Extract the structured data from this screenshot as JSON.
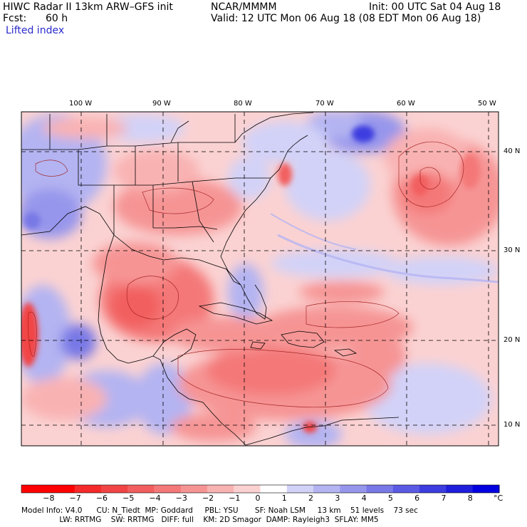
{
  "header": {
    "title": "HIWC Radar II 13km ARW–GFS init",
    "source": "NCAR/MMMM",
    "init": "Init: 00 UTC Sat 04 Aug 18",
    "fcst_label": "Fcst:",
    "fcst_value": "60 h",
    "valid": "Valid: 12 UTC Mon 06 Aug 18 (08 EDT Mon 06 Aug 18)",
    "field": "Lifted index"
  },
  "map": {
    "lon_labels": [
      "100 W",
      "90 W",
      "80 W",
      "70 W",
      "60 W",
      "50 W"
    ],
    "lat_labels": [
      "40 N",
      "30 N",
      "20 N",
      "10 N"
    ],
    "colors": {
      "neg_8": "#ff0000",
      "neg_7": "#f52a2a",
      "neg_6": "#f24444",
      "neg_5": "#f25e5e",
      "neg_4": "#f47878",
      "neg_3": "#f69494",
      "neg_2": "#f9b2b2",
      "neg_1": "#fbd0d0",
      "zero": "#ffffff",
      "pos_1": "#d2d2f8",
      "pos_2": "#b4b4f2",
      "pos_3": "#9696ec",
      "pos_4": "#7878e6",
      "pos_5": "#5a5ae4",
      "pos_6": "#3c3ce0",
      "pos_7": "#1e1edc",
      "pos_8": "#0000e0"
    }
  },
  "colorbar": {
    "labels": [
      "−8",
      "−7",
      "−6",
      "−5",
      "−4",
      "−3",
      "−2",
      "−1",
      "0",
      "1",
      "2",
      "3",
      "4",
      "5",
      "6",
      "7",
      "8"
    ],
    "unit": "°C"
  },
  "footer": {
    "line1": "Model Info: V4.0      CU: N_Tiedt  MP: Goddard     PBL: YSU       SF: Noah LSM     13 km    51 levels    73 sec",
    "line2": "                LW: RRTMG    SW: RRTMG   DIFF: full    KM: 2D Smagor  DAMP: Rayleigh3  SFLAY: MM5"
  }
}
